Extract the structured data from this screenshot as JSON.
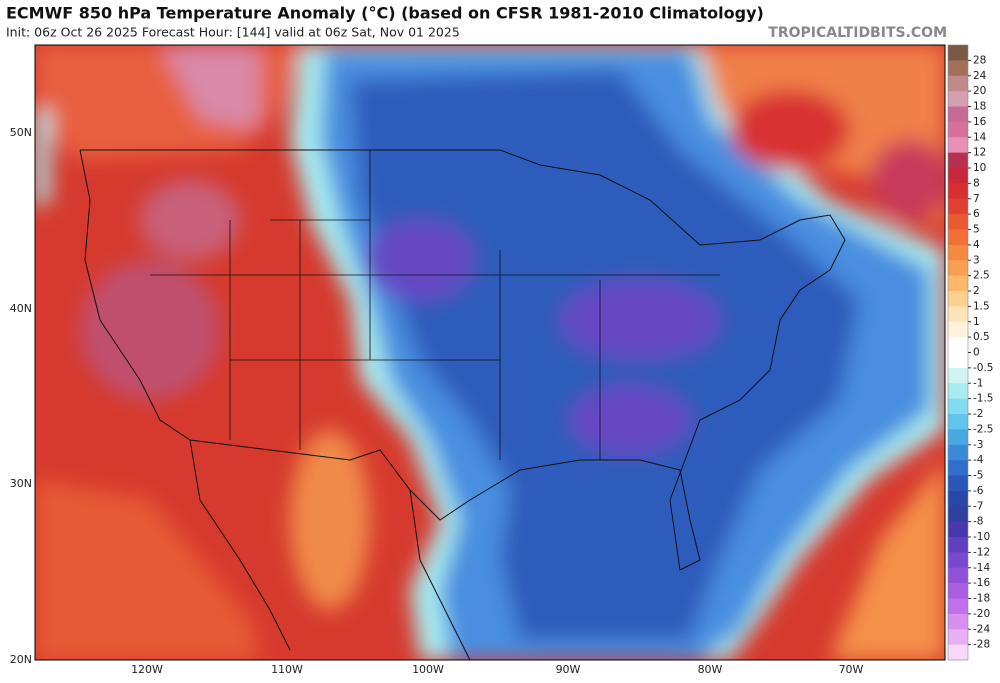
{
  "header": {
    "title": "ECMWF 850 hPa Temperature Anomaly (°C) (based on CFSR 1981-2010 Climatology)",
    "subtitle": "Init: 06z Oct 26 2025   Forecast Hour: [144]   valid at 06z Sat, Nov 01 2025",
    "site": "TROPICALTIDBITS.COM"
  },
  "axes": {
    "lat_labels": [
      "50N",
      "40N",
      "30N",
      "20N"
    ],
    "lon_labels": [
      "120W",
      "110W",
      "100W",
      "90W",
      "80W",
      "70W"
    ]
  },
  "colorbar": {
    "levels": [
      28,
      24,
      20,
      18,
      16,
      14,
      12,
      10,
      8,
      7,
      6,
      5,
      4,
      3,
      2.5,
      2,
      1.5,
      1,
      0.5,
      0,
      -0.5,
      -1,
      -1.5,
      -2,
      -2.5,
      -3,
      -4,
      -5,
      -6,
      -7,
      -8,
      -10,
      -12,
      -14,
      -16,
      -18,
      -20,
      -24,
      -28
    ],
    "colors": [
      "#7a5a44",
      "#a07058",
      "#c08a8a",
      "#d4a0b0",
      "#c86a98",
      "#d8709c",
      "#e890b8",
      "#b83050",
      "#c8283c",
      "#d83030",
      "#e04030",
      "#e85a30",
      "#f07038",
      "#f48a40",
      "#f8a050",
      "#fab868",
      "#fcd090",
      "#fde4b8",
      "#fff2dc",
      "#ffffff",
      "#ffffff",
      "#d0f4f4",
      "#a8ecf0",
      "#80dcee",
      "#60c4ec",
      "#48a8e4",
      "#3a8ad8",
      "#3070cc",
      "#2a58b8",
      "#2848a8",
      "#3040a0",
      "#4838b0",
      "#6040c0",
      "#7848d0",
      "#9050d8",
      "#a860e0",
      "#c070e8",
      "#d890f0",
      "#e8b0f4",
      "#f8d8f8"
    ]
  }
}
